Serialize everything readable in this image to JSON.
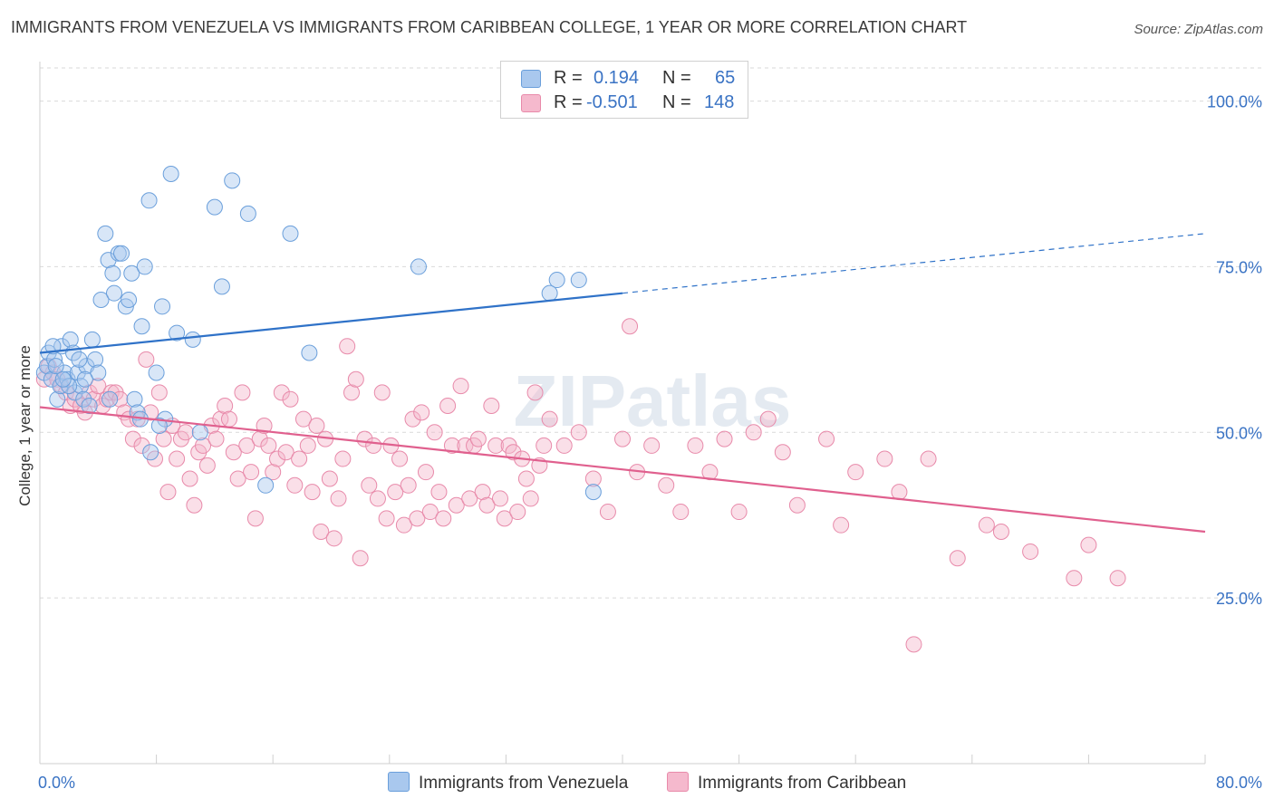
{
  "header": {
    "title": "IMMIGRANTS FROM VENEZUELA VS IMMIGRANTS FROM CARIBBEAN COLLEGE, 1 YEAR OR MORE CORRELATION CHART",
    "source": "Source: ZipAtlas.com"
  },
  "legend": {
    "series1": {
      "r_label": "R =",
      "r_value": "0.194",
      "n_label": "N =",
      "n_value": "65"
    },
    "series2": {
      "r_label": "R =",
      "r_value": "-0.501",
      "n_label": "N =",
      "n_value": "148"
    }
  },
  "bottom_legend": {
    "series1": "Immigrants from Venezuela",
    "series2": "Immigrants from Caribbean"
  },
  "colors": {
    "blue_fill": "#a9c8ee",
    "blue_stroke": "#6a9fdb",
    "blue_line": "#2f72c8",
    "pink_fill": "#f5b9cd",
    "pink_stroke": "#e88aaa",
    "pink_line": "#e0608e",
    "accent_text": "#3a73c4"
  },
  "watermark": "ZIPatlas",
  "chart_data": {
    "type": "scatter",
    "title": "IMMIGRANTS FROM VENEZUELA VS IMMIGRANTS FROM CARIBBEAN COLLEGE, 1 YEAR OR MORE CORRELATION CHART",
    "xlabel": "",
    "ylabel": "College, 1 year or more",
    "xlim": [
      0,
      80
    ],
    "ylim": [
      0,
      105
    ],
    "x_tick_labels": [
      "0.0%",
      "80.0%"
    ],
    "y_ticks": [
      25,
      50,
      75,
      100
    ],
    "y_tick_labels": [
      "25.0%",
      "50.0%",
      "75.0%",
      "100.0%"
    ],
    "grid": true,
    "series": [
      {
        "name": "Immigrants from Venezuela",
        "r": 0.194,
        "n": 65,
        "trend": {
          "x0": 0,
          "y0": 62.0,
          "x1": 40,
          "y1": 71.0,
          "dashed_to_x": 80,
          "dashed_to_y": 80.0
        },
        "points": [
          [
            0.3,
            59
          ],
          [
            0.5,
            60
          ],
          [
            0.6,
            62
          ],
          [
            0.8,
            58
          ],
          [
            1.0,
            61
          ],
          [
            1.2,
            55
          ],
          [
            1.4,
            57
          ],
          [
            1.5,
            63
          ],
          [
            1.7,
            59
          ],
          [
            1.9,
            58
          ],
          [
            2.1,
            64
          ],
          [
            2.3,
            62
          ],
          [
            2.4,
            56
          ],
          [
            2.6,
            59
          ],
          [
            2.8,
            57
          ],
          [
            3.0,
            55
          ],
          [
            3.2,
            60
          ],
          [
            3.4,
            54
          ],
          [
            3.6,
            64
          ],
          [
            3.8,
            61
          ],
          [
            4.0,
            59
          ],
          [
            4.2,
            70
          ],
          [
            4.5,
            80
          ],
          [
            4.7,
            76
          ],
          [
            5.0,
            74
          ],
          [
            5.1,
            71
          ],
          [
            5.4,
            77
          ],
          [
            5.6,
            77
          ],
          [
            5.9,
            69
          ],
          [
            6.1,
            70
          ],
          [
            6.3,
            74
          ],
          [
            6.5,
            55
          ],
          [
            6.7,
            53
          ],
          [
            7.0,
            66
          ],
          [
            7.2,
            75
          ],
          [
            7.5,
            85
          ],
          [
            7.6,
            47
          ],
          [
            8.0,
            59
          ],
          [
            8.4,
            69
          ],
          [
            8.6,
            52
          ],
          [
            9.0,
            89
          ],
          [
            9.4,
            65
          ],
          [
            10.5,
            64
          ],
          [
            11.0,
            50
          ],
          [
            12.0,
            84
          ],
          [
            12.5,
            72
          ],
          [
            13.2,
            88
          ],
          [
            14.3,
            83
          ],
          [
            15.5,
            42
          ],
          [
            17.2,
            80
          ],
          [
            18.5,
            62
          ],
          [
            26.0,
            75
          ],
          [
            35.0,
            71
          ],
          [
            35.5,
            73
          ],
          [
            37.0,
            73
          ],
          [
            38.0,
            41
          ],
          [
            2.0,
            57
          ],
          [
            1.1,
            60
          ],
          [
            0.9,
            63
          ],
          [
            3.1,
            58
          ],
          [
            4.8,
            55
          ],
          [
            2.7,
            61
          ],
          [
            6.9,
            52
          ],
          [
            8.2,
            51
          ],
          [
            1.6,
            58
          ]
        ]
      },
      {
        "name": "Immigrants from Caribbean",
        "r": -0.501,
        "n": 148,
        "trend": {
          "x0": 0,
          "y0": 53.8,
          "x1": 80,
          "y1": 35.0
        },
        "points": [
          [
            0.3,
            58
          ],
          [
            0.6,
            60
          ],
          [
            0.9,
            59
          ],
          [
            1.2,
            58
          ],
          [
            1.5,
            57
          ],
          [
            1.8,
            56
          ],
          [
            2.1,
            54
          ],
          [
            2.4,
            55
          ],
          [
            2.8,
            54
          ],
          [
            3.1,
            53
          ],
          [
            3.4,
            56
          ],
          [
            3.7,
            55
          ],
          [
            4.0,
            57
          ],
          [
            4.3,
            54
          ],
          [
            4.6,
            55
          ],
          [
            4.9,
            56
          ],
          [
            5.2,
            56
          ],
          [
            5.5,
            55
          ],
          [
            5.8,
            53
          ],
          [
            6.1,
            52
          ],
          [
            6.4,
            49
          ],
          [
            6.7,
            52
          ],
          [
            7.0,
            48
          ],
          [
            7.3,
            61
          ],
          [
            7.6,
            53
          ],
          [
            7.9,
            46
          ],
          [
            8.2,
            56
          ],
          [
            8.5,
            49
          ],
          [
            8.8,
            41
          ],
          [
            9.1,
            51
          ],
          [
            9.4,
            46
          ],
          [
            9.7,
            49
          ],
          [
            10.0,
            50
          ],
          [
            10.3,
            43
          ],
          [
            10.6,
            39
          ],
          [
            10.9,
            47
          ],
          [
            11.2,
            48
          ],
          [
            11.5,
            45
          ],
          [
            11.8,
            51
          ],
          [
            12.1,
            49
          ],
          [
            12.4,
            52
          ],
          [
            12.7,
            54
          ],
          [
            13.0,
            52
          ],
          [
            13.3,
            47
          ],
          [
            13.6,
            43
          ],
          [
            13.9,
            56
          ],
          [
            14.2,
            48
          ],
          [
            14.5,
            44
          ],
          [
            14.8,
            37
          ],
          [
            15.1,
            49
          ],
          [
            15.4,
            51
          ],
          [
            15.7,
            48
          ],
          [
            16.0,
            44
          ],
          [
            16.3,
            46
          ],
          [
            16.6,
            56
          ],
          [
            16.9,
            47
          ],
          [
            17.2,
            55
          ],
          [
            17.5,
            42
          ],
          [
            17.8,
            46
          ],
          [
            18.1,
            52
          ],
          [
            18.4,
            48
          ],
          [
            18.7,
            41
          ],
          [
            19.0,
            51
          ],
          [
            19.3,
            35
          ],
          [
            19.6,
            49
          ],
          [
            19.9,
            43
          ],
          [
            20.2,
            34
          ],
          [
            20.5,
            40
          ],
          [
            20.8,
            46
          ],
          [
            21.1,
            63
          ],
          [
            21.4,
            56
          ],
          [
            21.7,
            58
          ],
          [
            22.0,
            31
          ],
          [
            22.3,
            49
          ],
          [
            22.6,
            42
          ],
          [
            22.9,
            48
          ],
          [
            23.2,
            40
          ],
          [
            23.5,
            56
          ],
          [
            23.8,
            37
          ],
          [
            24.1,
            48
          ],
          [
            24.4,
            41
          ],
          [
            24.7,
            46
          ],
          [
            25.0,
            36
          ],
          [
            25.3,
            42
          ],
          [
            25.6,
            52
          ],
          [
            25.9,
            37
          ],
          [
            26.2,
            53
          ],
          [
            26.5,
            44
          ],
          [
            26.8,
            38
          ],
          [
            27.1,
            50
          ],
          [
            27.4,
            41
          ],
          [
            27.7,
            37
          ],
          [
            28.0,
            54
          ],
          [
            28.3,
            48
          ],
          [
            28.6,
            39
          ],
          [
            28.9,
            57
          ],
          [
            29.2,
            48
          ],
          [
            29.5,
            40
          ],
          [
            29.8,
            48
          ],
          [
            30.1,
            49
          ],
          [
            30.4,
            41
          ],
          [
            30.7,
            39
          ],
          [
            31.0,
            54
          ],
          [
            31.3,
            48
          ],
          [
            31.6,
            40
          ],
          [
            31.9,
            37
          ],
          [
            32.2,
            48
          ],
          [
            32.5,
            47
          ],
          [
            32.8,
            38
          ],
          [
            33.1,
            46
          ],
          [
            33.4,
            43
          ],
          [
            33.7,
            40
          ],
          [
            34.0,
            56
          ],
          [
            34.3,
            45
          ],
          [
            34.6,
            48
          ],
          [
            35.0,
            52
          ],
          [
            36.0,
            48
          ],
          [
            37.0,
            50
          ],
          [
            38.0,
            43
          ],
          [
            39.0,
            38
          ],
          [
            40.0,
            49
          ],
          [
            40.5,
            66
          ],
          [
            41.0,
            44
          ],
          [
            42.0,
            48
          ],
          [
            43.0,
            42
          ],
          [
            44.0,
            38
          ],
          [
            45.0,
            48
          ],
          [
            46.0,
            44
          ],
          [
            47.0,
            49
          ],
          [
            48.0,
            38
          ],
          [
            49.0,
            50
          ],
          [
            50.0,
            52
          ],
          [
            51.0,
            47
          ],
          [
            52.0,
            39
          ],
          [
            54.0,
            49
          ],
          [
            55.0,
            36
          ],
          [
            56.0,
            44
          ],
          [
            58.0,
            46
          ],
          [
            59.0,
            41
          ],
          [
            60.0,
            18
          ],
          [
            61.0,
            46
          ],
          [
            63.0,
            31
          ],
          [
            65.0,
            36
          ],
          [
            66.0,
            35
          ],
          [
            68.0,
            32
          ],
          [
            71.0,
            28
          ],
          [
            72.0,
            33
          ],
          [
            74.0,
            28
          ]
        ]
      }
    ]
  }
}
